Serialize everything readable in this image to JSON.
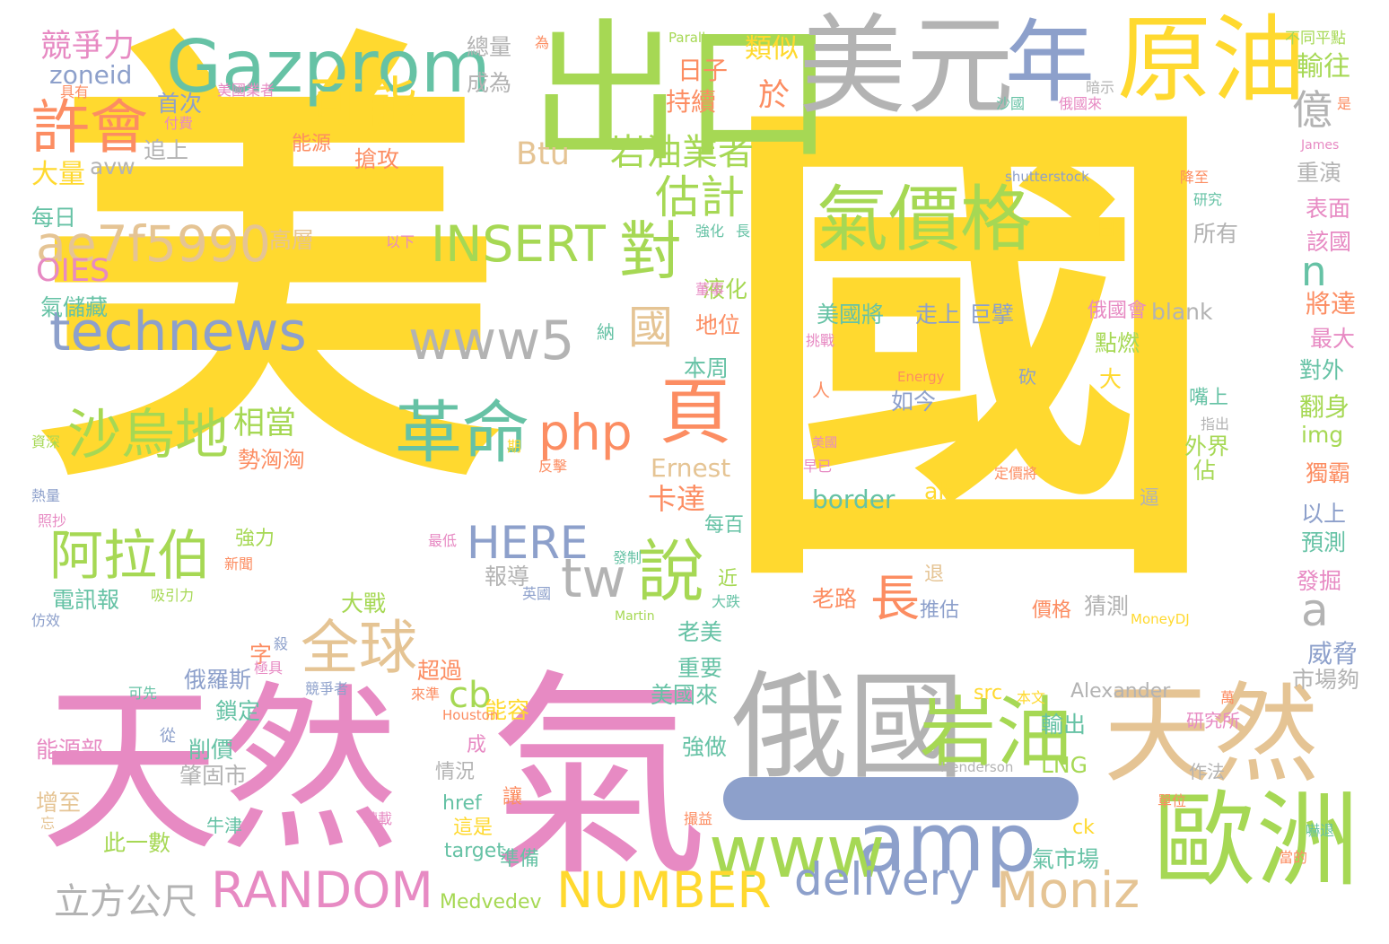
{
  "palette": {
    "yellow": "#ffd92f",
    "pink": "#e78ac3",
    "green": "#a6d854",
    "teal": "#66c2a5",
    "blue": "#8da0cb",
    "orange": "#fc8d62",
    "tan": "#e5c494",
    "gray": "#b3b3b3"
  },
  "words": [
    {
      "t": "美",
      "c": "yellow"
    },
    {
      "t": "國",
      "c": "yellow"
    },
    {
      "t": "天然",
      "c": "pink"
    },
    {
      "t": "氣",
      "c": "pink"
    },
    {
      "t": "出口",
      "c": "green"
    },
    {
      "t": "美元",
      "c": "gray"
    },
    {
      "t": "年",
      "c": "blue"
    },
    {
      "t": "原油",
      "c": "yellow"
    },
    {
      "t": "Gazprom",
      "c": "teal"
    },
    {
      "t": "俄國",
      "c": "gray"
    },
    {
      "t": "天然",
      "c": "tan"
    },
    {
      "t": "歐洲",
      "c": "green"
    },
    {
      "t": "岩油",
      "c": "green"
    },
    {
      "t": "amp",
      "c": "blue"
    },
    {
      "t": "www",
      "c": "green"
    },
    {
      "t": "delivery",
      "c": "blue"
    },
    {
      "t": "Moniz",
      "c": "tan"
    },
    {
      "t": "NUMBER",
      "c": "yellow"
    },
    {
      "t": "RANDOM",
      "c": "pink"
    },
    {
      "t": "立方公尺",
      "c": "gray"
    },
    {
      "t": "technews",
      "c": "blue"
    },
    {
      "t": "ae7f5990",
      "c": "tan"
    },
    {
      "t": "www5",
      "c": "gray"
    },
    {
      "t": "INSERT",
      "c": "green"
    },
    {
      "t": "氣價格",
      "c": "green"
    },
    {
      "t": "頁",
      "c": "orange"
    },
    {
      "t": "對",
      "c": "green"
    },
    {
      "t": "可能",
      "c": "yellow"
    },
    {
      "t": "許會",
      "c": "orange"
    },
    {
      "t": "競爭力",
      "c": "pink"
    },
    {
      "t": "沙烏地",
      "c": "green"
    },
    {
      "t": "阿拉伯",
      "c": "green"
    },
    {
      "t": "革命",
      "c": "teal"
    },
    {
      "t": "全球",
      "c": "tan"
    },
    {
      "t": "說",
      "c": "green"
    },
    {
      "t": "tw",
      "c": "gray"
    },
    {
      "t": "php",
      "c": "orange"
    },
    {
      "t": "HERE",
      "c": "blue"
    },
    {
      "t": "cb",
      "c": "green"
    },
    {
      "t": "估計",
      "c": "green"
    },
    {
      "t": "岩油業者",
      "c": "green"
    },
    {
      "t": "國",
      "c": "tan"
    },
    {
      "t": "億",
      "c": "gray"
    },
    {
      "t": "輸往",
      "c": "green"
    },
    {
      "t": "a",
      "c": "gray"
    },
    {
      "t": "n",
      "c": "teal"
    },
    {
      "t": "長",
      "c": "orange"
    },
    {
      "t": "相當",
      "c": "green"
    },
    {
      "t": "Btu",
      "c": "tan"
    },
    {
      "t": "OIES",
      "c": "pink"
    },
    {
      "t": "zoneid",
      "c": "blue"
    },
    {
      "t": "總量",
      "c": "gray"
    },
    {
      "t": "成為",
      "c": "gray"
    },
    {
      "t": "類似",
      "c": "yellow"
    },
    {
      "t": "於",
      "c": "orange"
    },
    {
      "t": "日子",
      "c": "orange"
    },
    {
      "t": "持續",
      "c": "orange"
    },
    {
      "t": "首次",
      "c": "blue"
    },
    {
      "t": "追上",
      "c": "gray"
    },
    {
      "t": "能源",
      "c": "orange"
    },
    {
      "t": "搶攻",
      "c": "orange"
    },
    {
      "t": "大量",
      "c": "yellow"
    },
    {
      "t": "avw",
      "c": "gray"
    },
    {
      "t": "每日",
      "c": "teal"
    },
    {
      "t": "高層",
      "c": "tan"
    },
    {
      "t": "氣儲藏",
      "c": "teal"
    },
    {
      "t": "地位",
      "c": "orange"
    },
    {
      "t": "液化",
      "c": "green"
    },
    {
      "t": "本周",
      "c": "teal"
    },
    {
      "t": "卡達",
      "c": "orange"
    },
    {
      "t": "勢洶洶",
      "c": "orange"
    },
    {
      "t": "外界",
      "c": "green"
    },
    {
      "t": "佔",
      "c": "green"
    },
    {
      "t": "Ernest",
      "c": "tan"
    },
    {
      "t": "border",
      "c": "teal"
    },
    {
      "t": "alt",
      "c": "yellow"
    },
    {
      "t": "美國將",
      "c": "teal"
    },
    {
      "t": "走上",
      "c": "blue"
    },
    {
      "t": "巨擘",
      "c": "blue"
    },
    {
      "t": "點燃",
      "c": "green"
    },
    {
      "t": "如今",
      "c": "blue"
    },
    {
      "t": "俄國會",
      "c": "pink"
    },
    {
      "t": "blank",
      "c": "gray"
    },
    {
      "t": "所有",
      "c": "gray"
    },
    {
      "t": "將達",
      "c": "orange"
    },
    {
      "t": "最大",
      "c": "pink"
    },
    {
      "t": "對外",
      "c": "teal"
    },
    {
      "t": "翻身",
      "c": "green"
    },
    {
      "t": "img",
      "c": "green"
    },
    {
      "t": "獨霸",
      "c": "orange"
    },
    {
      "t": "以上",
      "c": "blue"
    },
    {
      "t": "預測",
      "c": "teal"
    },
    {
      "t": "發掘",
      "c": "pink"
    },
    {
      "t": "威脅",
      "c": "blue"
    },
    {
      "t": "市場夠",
      "c": "gray"
    },
    {
      "t": "重演",
      "c": "gray"
    },
    {
      "t": "表面",
      "c": "pink"
    },
    {
      "t": "該國",
      "c": "pink"
    },
    {
      "t": "強力",
      "c": "green"
    },
    {
      "t": "電訊報",
      "c": "teal"
    },
    {
      "t": "大戰",
      "c": "green"
    },
    {
      "t": "老美",
      "c": "teal"
    },
    {
      "t": "重要",
      "c": "teal"
    },
    {
      "t": "美國來",
      "c": "teal"
    },
    {
      "t": "強做",
      "c": "teal"
    },
    {
      "t": "俄羅斯",
      "c": "blue"
    },
    {
      "t": "鎖定",
      "c": "teal"
    },
    {
      "t": "削價",
      "c": "teal"
    },
    {
      "t": "超過",
      "c": "orange"
    },
    {
      "t": "能容",
      "c": "yellow"
    },
    {
      "t": "字",
      "c": "orange"
    },
    {
      "t": "能源部",
      "c": "pink"
    },
    {
      "t": "肇固市",
      "c": "gray"
    },
    {
      "t": "增至",
      "c": "tan"
    },
    {
      "t": "牛津",
      "c": "teal"
    },
    {
      "t": "此一數",
      "c": "green"
    },
    {
      "t": "報導",
      "c": "gray"
    },
    {
      "t": "每百",
      "c": "teal"
    },
    {
      "t": "近",
      "c": "green"
    },
    {
      "t": "情況",
      "c": "gray"
    },
    {
      "t": "成",
      "c": "pink"
    },
    {
      "t": "讓",
      "c": "orange"
    },
    {
      "t": "href",
      "c": "teal"
    },
    {
      "t": "這是",
      "c": "yellow"
    },
    {
      "t": "target",
      "c": "teal"
    },
    {
      "t": "準備",
      "c": "teal"
    },
    {
      "t": "Medvedev",
      "c": "green"
    },
    {
      "t": "src",
      "c": "yellow"
    },
    {
      "t": "Alexander",
      "c": "gray"
    },
    {
      "t": "輸出",
      "c": "teal"
    },
    {
      "t": "LNG",
      "c": "green"
    },
    {
      "t": "ck",
      "c": "yellow"
    },
    {
      "t": "氣市場",
      "c": "teal"
    },
    {
      "t": "猜測",
      "c": "gray"
    },
    {
      "t": "價格",
      "c": "orange"
    },
    {
      "t": "推估",
      "c": "blue"
    },
    {
      "t": "老路",
      "c": "orange"
    },
    {
      "t": "研究所",
      "c": "pink"
    },
    {
      "t": "作法",
      "c": "gray"
    },
    {
      "t": "shutterstock",
      "c": "blue"
    },
    {
      "t": "Parallax",
      "c": "green"
    },
    {
      "t": "不同平點",
      "c": "green"
    },
    {
      "t": "美國業者",
      "c": "pink"
    },
    {
      "t": "James",
      "c": "pink"
    },
    {
      "t": "Energy",
      "c": "orange"
    },
    {
      "t": "Henderson",
      "c": "gray"
    },
    {
      "t": "Houston",
      "c": "orange"
    },
    {
      "t": "MoneyDJ",
      "c": "yellow"
    },
    {
      "t": "Martin",
      "c": "green"
    },
    {
      "t": "暗示",
      "c": "gray"
    },
    {
      "t": "沙國",
      "c": "teal"
    },
    {
      "t": "俄國來",
      "c": "pink"
    },
    {
      "t": "具有",
      "c": "orange"
    },
    {
      "t": "付費",
      "c": "pink"
    },
    {
      "t": "為",
      "c": "orange"
    },
    {
      "t": "是",
      "c": "orange"
    },
    {
      "t": "降至",
      "c": "orange"
    },
    {
      "t": "研究",
      "c": "teal"
    },
    {
      "t": "強化",
      "c": "teal"
    },
    {
      "t": "長",
      "c": "teal"
    },
    {
      "t": "董事",
      "c": "pink"
    },
    {
      "t": "以下",
      "c": "pink"
    },
    {
      "t": "日",
      "c": "yellow"
    },
    {
      "t": "納",
      "c": "teal"
    },
    {
      "t": "挑戰",
      "c": "pink"
    },
    {
      "t": "砍",
      "c": "blue"
    },
    {
      "t": "人",
      "c": "orange"
    },
    {
      "t": "大",
      "c": "yellow"
    },
    {
      "t": "資深",
      "c": "green"
    },
    {
      "t": "熱量",
      "c": "blue"
    },
    {
      "t": "照抄",
      "c": "pink"
    },
    {
      "t": "期",
      "c": "yellow"
    },
    {
      "t": "反擊",
      "c": "orange"
    },
    {
      "t": "早已",
      "c": "pink"
    },
    {
      "t": "美國",
      "c": "pink"
    },
    {
      "t": "定價將",
      "c": "orange"
    },
    {
      "t": "逼",
      "c": "gray"
    },
    {
      "t": "退",
      "c": "tan"
    },
    {
      "t": "指出",
      "c": "gray"
    },
    {
      "t": "嘴上",
      "c": "teal"
    },
    {
      "t": "最低",
      "c": "pink"
    },
    {
      "t": "發制",
      "c": "teal"
    },
    {
      "t": "英國",
      "c": "blue"
    },
    {
      "t": "大跌",
      "c": "teal"
    },
    {
      "t": "新聞",
      "c": "orange"
    },
    {
      "t": "吸引力",
      "c": "green"
    },
    {
      "t": "仿效",
      "c": "blue"
    },
    {
      "t": "可先",
      "c": "teal"
    },
    {
      "t": "殺",
      "c": "blue"
    },
    {
      "t": "極具",
      "c": "pink"
    },
    {
      "t": "競爭者",
      "c": "blue"
    },
    {
      "t": "來準",
      "c": "orange"
    },
    {
      "t": "本文",
      "c": "yellow"
    },
    {
      "t": "萬",
      "c": "orange"
    },
    {
      "t": "從",
      "c": "blue"
    },
    {
      "t": "忘",
      "c": "tan"
    },
    {
      "t": "轉載",
      "c": "pink"
    },
    {
      "t": "撮益",
      "c": "orange"
    },
    {
      "t": "單位",
      "c": "orange"
    },
    {
      "t": "當的",
      "c": "orange"
    },
    {
      "t": "嚇退",
      "c": "teal"
    }
  ]
}
